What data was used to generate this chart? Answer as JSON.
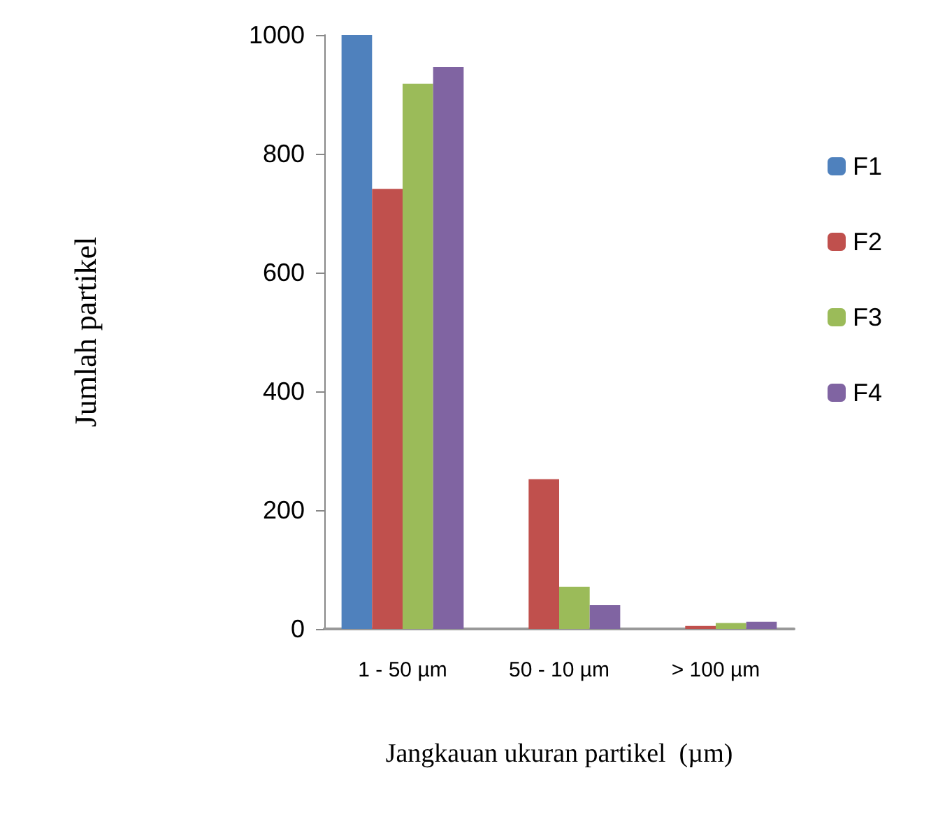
{
  "chart_data": {
    "type": "bar",
    "xlabel": "Jangkauan ukuran partikel  (µm)",
    "ylabel": "Jumlah partikel",
    "categories": [
      "1 - 50 µm",
      "50 - 10 µm",
      "> 100 µm"
    ],
    "series": [
      {
        "name": "F1",
        "color": "#4f81bd",
        "values": [
          1000,
          0,
          0
        ]
      },
      {
        "name": "F2",
        "color": "#c0504d",
        "values": [
          741,
          252,
          5
        ]
      },
      {
        "name": "F3",
        "color": "#9bbb59",
        "values": [
          918,
          71,
          10
        ]
      },
      {
        "name": "F4",
        "color": "#8064a2",
        "values": [
          946,
          40,
          12
        ]
      }
    ],
    "ylim": [
      0,
      1000
    ],
    "yticks": [
      0,
      200,
      400,
      600,
      800,
      1000
    ],
    "grid": false,
    "legend": "right"
  }
}
